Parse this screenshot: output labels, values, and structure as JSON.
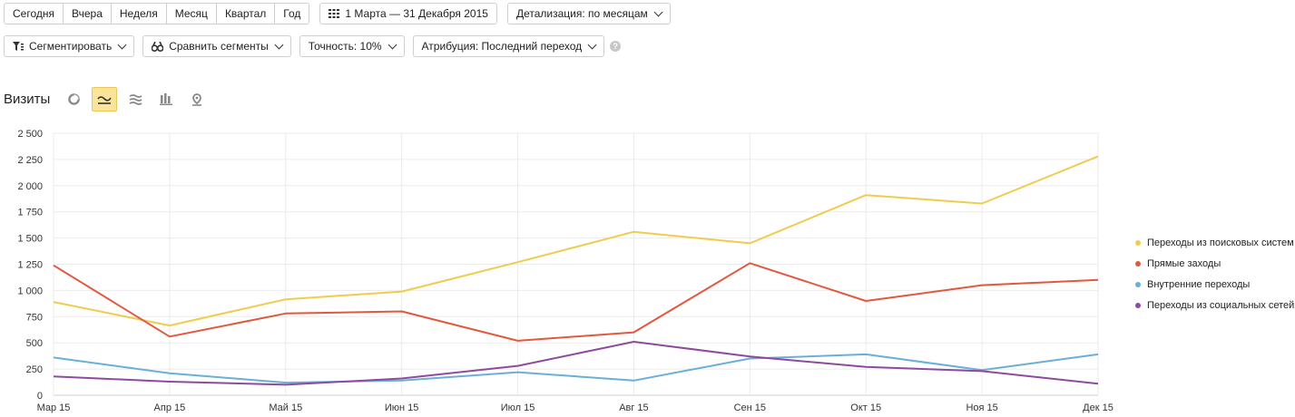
{
  "period_buttons": [
    "Сегодня",
    "Вчера",
    "Неделя",
    "Месяц",
    "Квартал",
    "Год"
  ],
  "date_range": "1 Марта — 31 Декабря 2015",
  "detail": "Детализация: по месяцам",
  "segment": "Сегментировать",
  "compare": "Сравнить сегменты",
  "accuracy": "Точность: 10%",
  "attribution": "Атрибуция: Последний переход",
  "help": "?",
  "chart_title": "Визиты",
  "chart_views": [
    "pie-chart-icon",
    "line-chart-icon",
    "area-chart-icon",
    "bar-chart-icon",
    "map-icon"
  ],
  "chart_data": {
    "type": "line",
    "title": "Визиты",
    "x": [
      "Мар 15",
      "Апр 15",
      "Май 15",
      "Июн 15",
      "Июл 15",
      "Авг 15",
      "Сен 15",
      "Окт 15",
      "Ноя 15",
      "Дек 15"
    ],
    "y_ticks": [
      "0",
      "250",
      "500",
      "750",
      "1 000",
      "1 250",
      "1 500",
      "1 750",
      "2 000",
      "2 250",
      "2 500"
    ],
    "ylim": [
      0,
      2500
    ],
    "grid": true,
    "legend_position": "right",
    "series": [
      {
        "name": "Переходы из поисковых систем",
        "color": "#f0cc4e",
        "values": [
          890,
          665,
          915,
          990,
          1270,
          1560,
          1450,
          1910,
          1830,
          2280
        ]
      },
      {
        "name": "Прямые заходы",
        "color": "#e2583e",
        "values": [
          1240,
          560,
          780,
          800,
          520,
          600,
          1260,
          900,
          1050,
          1100
        ]
      },
      {
        "name": "Внутренние переходы",
        "color": "#6aaed9",
        "values": [
          360,
          210,
          120,
          140,
          220,
          140,
          350,
          390,
          240,
          390
        ]
      },
      {
        "name": "Переходы из социальных сетей",
        "color": "#8e4a9e",
        "values": [
          180,
          130,
          100,
          160,
          280,
          510,
          370,
          270,
          230,
          110
        ]
      }
    ]
  }
}
